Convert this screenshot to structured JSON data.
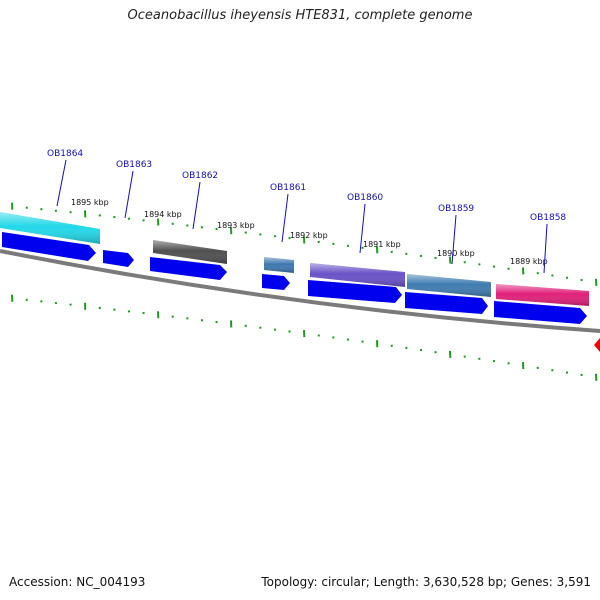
{
  "title": "Oceanobacillus iheyensis HTE831, complete genome",
  "footer": {
    "accession": "Accession: NC_004193",
    "summary": "Topology: circular; Length: 3,630,528 bp; Genes: 3,591"
  },
  "colors": {
    "backbone": "#7a7a7a",
    "cds": "#0000ee",
    "tick": "#1f9a1f",
    "gene_label": "#1010b0",
    "kbp_label": "#111111",
    "marker": "#ee0000"
  },
  "kbp_labels": [
    "1895 kbp",
    "1894 kbp",
    "1893 kbp",
    "1892 kbp",
    "1891 kbp",
    "1890 kbp",
    "1889 kbp"
  ],
  "genes": [
    {
      "label": "OB1864",
      "color": "#22d8e8"
    },
    {
      "label": "OB1863",
      "color": ""
    },
    {
      "label": "OB1862",
      "color": "#505050"
    },
    {
      "label": "OB1861",
      "color": "#3f78b0"
    },
    {
      "label": "OB1860",
      "color": "#6a52c8"
    },
    {
      "label": "OB1859",
      "color": "#3f7cb0"
    },
    {
      "label": "OB1858",
      "color": "#e0207a"
    }
  ]
}
